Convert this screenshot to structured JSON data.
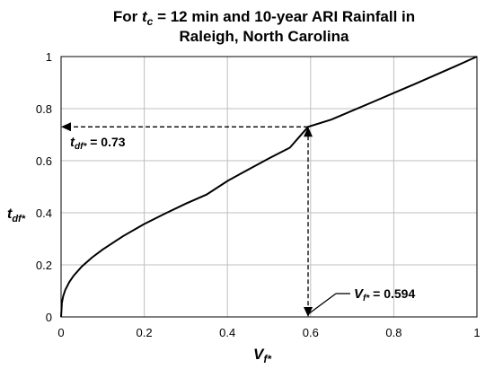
{
  "chart_data": {
    "type": "line",
    "title_parts": {
      "prefix": "For ",
      "var_main": "t",
      "var_sub": "c",
      "suffix": " = 12 min and 10-year ARI Rainfall in",
      "line2": "Raleigh, North Carolina"
    },
    "xlabel": {
      "main": "V",
      "sub": "f*"
    },
    "ylabel": {
      "main": "t",
      "sub": "df*"
    },
    "xlim": [
      0,
      1
    ],
    "ylim": [
      0,
      1
    ],
    "x_ticks": [
      "0",
      "0.2",
      "0.4",
      "0.6",
      "0.8",
      "1"
    ],
    "y_ticks": [
      "0",
      "0.2",
      "0.4",
      "0.6",
      "0.8",
      "1"
    ],
    "grid": true,
    "legend": "none",
    "series": [
      {
        "x": [
          0,
          0.002,
          0.005,
          0.01,
          0.02,
          0.03,
          0.05,
          0.075,
          0.1,
          0.15,
          0.2,
          0.25,
          0.3,
          0.35,
          0.4,
          0.45,
          0.5,
          0.55,
          0.594,
          0.65,
          0.7,
          0.75,
          0.8,
          0.85,
          0.9,
          0.95,
          1.0
        ],
        "y": [
          0,
          0.054,
          0.079,
          0.103,
          0.135,
          0.158,
          0.194,
          0.229,
          0.259,
          0.311,
          0.357,
          0.397,
          0.435,
          0.47,
          0.522,
          0.566,
          0.609,
          0.65,
          0.73,
          0.758,
          0.792,
          0.826,
          0.86,
          0.894,
          0.929,
          0.964,
          1.0
        ],
        "color": "#000000"
      }
    ],
    "annotations": [
      {
        "var_main": "t",
        "var_sub": "df*",
        "text": " = 0.73",
        "x": 0.594,
        "y": 0.73,
        "arrow": "to-y-axis"
      },
      {
        "var_main": "V",
        "var_sub": "f*",
        "text": " = 0.594",
        "x": 0.594,
        "y": 0.73,
        "arrow": "to-x-axis"
      }
    ]
  }
}
